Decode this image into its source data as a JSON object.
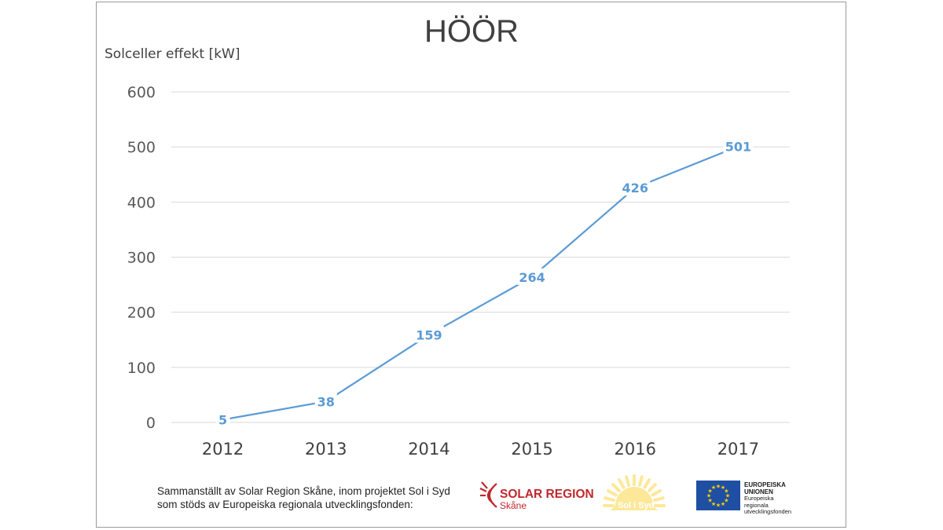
{
  "chart_data": {
    "type": "line",
    "title": "HÖÖR",
    "ylabel": "Solceller effekt [kW]",
    "xlabel": "",
    "categories": [
      "2012",
      "2013",
      "2014",
      "2015",
      "2016",
      "2017"
    ],
    "series": [
      {
        "values": [
          5,
          38,
          159,
          264,
          426,
          501
        ]
      }
    ],
    "data_labels": [
      "5",
      "38",
      "159",
      "264",
      "426",
      "501"
    ],
    "ylim": [
      0,
      600
    ],
    "yticks": [
      0,
      100,
      200,
      300,
      400,
      500,
      600
    ],
    "ytick_labels": [
      "0",
      "100",
      "200",
      "300",
      "400",
      "500",
      "600"
    ],
    "grid": true,
    "line_color": "#5b9bd5",
    "grid_color": "#d9d9d9"
  },
  "footer": {
    "line1": "Sammanställt av Solar Region Skåne, inom projektet Sol i Syd",
    "line2": "som stöds av Europeiska regionala utvecklingsfonden:"
  },
  "logos": {
    "solar_region": {
      "name": "SOLAR REGION",
      "sub": "Skåne",
      "color": "#c0272d"
    },
    "sol_i_syd": {
      "name": "Sol i Syd",
      "color": "#fde89a"
    },
    "eu": {
      "title_line1": "EUROPEISKA",
      "title_line2": "UNIONEN",
      "sub_line1": "Europeiska",
      "sub_line2": "regionala",
      "sub_line3": "utvecklingsfonden",
      "flag_color": "#1f4fa3",
      "star_color": "#ffd200"
    }
  }
}
